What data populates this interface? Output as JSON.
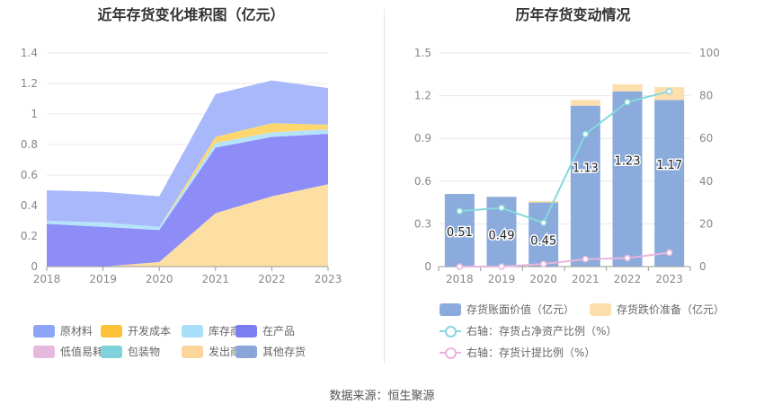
{
  "source_label": "数据来源：恒生聚源",
  "chart_data": [
    {
      "type": "area",
      "stacked": true,
      "title": "近年存货变化堆积图（亿元）",
      "categories": [
        "2018",
        "2019",
        "2020",
        "2021",
        "2022",
        "2023"
      ],
      "ylim": [
        0,
        1.4
      ],
      "yticks": [
        "0",
        "0.2",
        "0.4",
        "0.6",
        "0.8",
        "1",
        "1.2",
        "1.4"
      ],
      "series": [
        {
          "name": "发出商品",
          "color": "#fddea3",
          "values": [
            0.0,
            0.0,
            0.03,
            0.35,
            0.46,
            0.54
          ]
        },
        {
          "name": "在产品",
          "color": "#8e8df8",
          "values": [
            0.28,
            0.26,
            0.21,
            0.43,
            0.39,
            0.33
          ]
        },
        {
          "name": "库存商品",
          "color": "#b5e4fa",
          "values": [
            0.02,
            0.03,
            0.02,
            0.03,
            0.03,
            0.03
          ]
        },
        {
          "name": "开发成本",
          "color": "#fdd76e",
          "values": [
            0.0,
            0.0,
            0.0,
            0.04,
            0.06,
            0.03
          ]
        },
        {
          "name": "原材料",
          "color": "#a9b8fb",
          "values": [
            0.2,
            0.2,
            0.2,
            0.28,
            0.28,
            0.24
          ]
        },
        {
          "name": "低值易耗品",
          "color": "#e8b8dd",
          "values": [
            0,
            0,
            0,
            0,
            0,
            0
          ]
        },
        {
          "name": "包装物",
          "color": "#7fd3d8",
          "values": [
            0,
            0,
            0,
            0,
            0,
            0
          ]
        },
        {
          "name": "其他存货",
          "color": "#8aa5d8",
          "values": [
            0,
            0,
            0,
            0,
            0,
            0
          ]
        }
      ],
      "legend": [
        {
          "name": "原材料",
          "color": "#8ca5f8"
        },
        {
          "name": "开发成本",
          "color": "#fcc23a"
        },
        {
          "name": "库存商品",
          "color": "#a9def9"
        },
        {
          "name": "在产品",
          "color": "#7b7ef2"
        },
        {
          "name": "低值易耗品",
          "color": "#e6b8dc"
        },
        {
          "name": "包装物",
          "color": "#7fd3d8"
        },
        {
          "name": "发出商品",
          "color": "#fdd59a"
        },
        {
          "name": "其他存货",
          "color": "#8aa5d8"
        }
      ]
    },
    {
      "type": "bar",
      "title": "历年存货变动情况",
      "categories": [
        "2018",
        "2019",
        "2020",
        "2021",
        "2022",
        "2023"
      ],
      "ylim": [
        0,
        1.5
      ],
      "yticks": [
        "0",
        "0.3",
        "0.6",
        "0.9",
        "1.2",
        "1.5"
      ],
      "y2lim": [
        0,
        100
      ],
      "y2ticks": [
        "0",
        "20",
        "40",
        "60",
        "80",
        "100"
      ],
      "series": [
        {
          "name": "存货账面价值（亿元）",
          "color": "#8aabdc",
          "values": [
            0.51,
            0.49,
            0.45,
            1.13,
            1.23,
            1.17
          ],
          "labels": [
            "0.51",
            "0.49",
            "0.45",
            "1.13",
            "1.23",
            "1.17"
          ]
        },
        {
          "name": "存货跌价准备（亿元）",
          "color": "#fddfae",
          "values": [
            0.0,
            0.0,
            0.01,
            0.04,
            0.05,
            0.09
          ]
        },
        {
          "name": "右轴：存货占净资产比例（%）",
          "color": "#86d9dc",
          "axis": "right",
          "values": [
            26,
            27.5,
            20.5,
            62,
            77,
            82
          ]
        },
        {
          "name": "右轴：存货计提比例（%）",
          "color": "#eab5de",
          "axis": "right",
          "values": [
            0,
            0,
            1.2,
            3.5,
            4,
            6.5
          ]
        }
      ]
    }
  ]
}
